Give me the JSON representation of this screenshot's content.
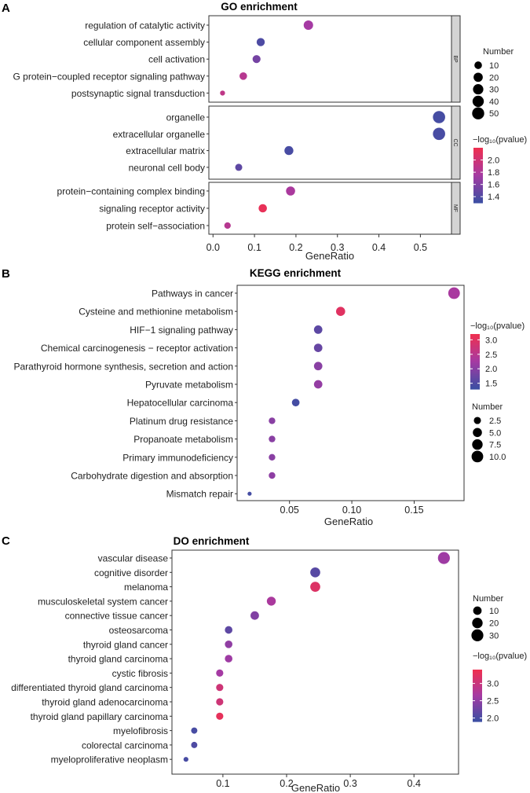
{
  "chart_data": [
    {
      "panel": "A",
      "type": "scatter",
      "title": "GO enrichment",
      "xlabel": "GeneRatio",
      "xlim": [
        -0.01,
        0.575
      ],
      "xticks": [
        0.0,
        0.1,
        0.2,
        0.3,
        0.4,
        0.5
      ],
      "xtick_labels": [
        "0.0",
        "0.1",
        "0.2",
        "0.3",
        "0.4",
        "0.5"
      ],
      "facets": [
        {
          "label": "BP",
          "terms": [
            {
              "term": "regulation of catalytic activity",
              "gene_ratio": 0.23,
              "number": 22,
              "log10p": 1.75
            },
            {
              "term": "cellular component assembly",
              "gene_ratio": 0.115,
              "number": 13,
              "log10p": 1.38
            },
            {
              "term": "cell activation",
              "gene_ratio": 0.105,
              "number": 12,
              "log10p": 1.55
            },
            {
              "term": "G protein−coupled receptor signaling pathway",
              "gene_ratio": 0.073,
              "number": 10,
              "log10p": 1.85
            },
            {
              "term": "postsynaptic signal transduction",
              "gene_ratio": 0.023,
              "number": 4,
              "log10p": 1.9
            }
          ]
        },
        {
          "label": "CC",
          "terms": [
            {
              "term": "organelle",
              "gene_ratio": 0.545,
              "number": 52,
              "log10p": 1.35
            },
            {
              "term": "extracellular organelle",
              "gene_ratio": 0.545,
              "number": 52,
              "log10p": 1.36
            },
            {
              "term": "extracellular matrix",
              "gene_ratio": 0.183,
              "number": 18,
              "log10p": 1.36
            },
            {
              "term": "neuronal cell body",
              "gene_ratio": 0.062,
              "number": 8,
              "log10p": 1.45
            }
          ]
        },
        {
          "label": "MF",
          "terms": [
            {
              "term": "protein−containing complex binding",
              "gene_ratio": 0.187,
              "number": 19,
              "log10p": 1.78
            },
            {
              "term": "signaling receptor activity",
              "gene_ratio": 0.12,
              "number": 14,
              "log10p": 2.15
            },
            {
              "term": "protein self−association",
              "gene_ratio": 0.035,
              "number": 6,
              "log10p": 1.85
            }
          ]
        }
      ],
      "color_legend": {
        "title": "−log₁₀(pvalue)",
        "ticks": [
          2.0,
          1.8,
          1.6,
          1.4
        ],
        "tick_labels": [
          "2.0",
          "1.8",
          "1.6",
          "1.4"
        ],
        "range": [
          1.3,
          2.2
        ]
      },
      "size_legend": {
        "title": "Number",
        "ticks": [
          10,
          20,
          30,
          40,
          50
        ],
        "tick_labels": [
          "10",
          "20",
          "30",
          "40",
          "50"
        ]
      }
    },
    {
      "panel": "B",
      "type": "scatter",
      "title": "KEGG enrichment",
      "xlabel": "GeneRatio",
      "xlim": [
        0.008,
        0.19
      ],
      "xticks": [
        0.05,
        0.1,
        0.15
      ],
      "xtick_labels": [
        "0.05",
        "0.10",
        "0.15"
      ],
      "terms": [
        {
          "term": "Pathways in cancer",
          "gene_ratio": 0.182,
          "number": 10,
          "log10p": 2.3
        },
        {
          "term": "Cysteine and methionine metabolism",
          "gene_ratio": 0.091,
          "number": 5,
          "log10p": 3.0
        },
        {
          "term": "HIF−1 signaling pathway",
          "gene_ratio": 0.073,
          "number": 4,
          "log10p": 1.6
        },
        {
          "term": "Chemical carcinogenesis − receptor activation",
          "gene_ratio": 0.073,
          "number": 4,
          "log10p": 1.7
        },
        {
          "term": "Parathyroid hormone synthesis, secretion and action",
          "gene_ratio": 0.073,
          "number": 4,
          "log10p": 2.0
        },
        {
          "term": "Pyruvate metabolism",
          "gene_ratio": 0.073,
          "number": 4,
          "log10p": 2.1
        },
        {
          "term": "Hepatocellular carcinoma",
          "gene_ratio": 0.055,
          "number": 3,
          "log10p": 1.4
        },
        {
          "term": "Platinum drug resistance",
          "gene_ratio": 0.036,
          "number": 2,
          "log10p": 2.0
        },
        {
          "term": "Propanoate metabolism",
          "gene_ratio": 0.036,
          "number": 2,
          "log10p": 2.0
        },
        {
          "term": "Primary immunodeficiency",
          "gene_ratio": 0.036,
          "number": 2,
          "log10p": 2.0
        },
        {
          "term": "Carbohydrate digestion and absorption",
          "gene_ratio": 0.036,
          "number": 2,
          "log10p": 2.05
        },
        {
          "term": "Mismatch repair",
          "gene_ratio": 0.018,
          "number": 1,
          "log10p": 1.4
        }
      ],
      "color_legend": {
        "title": "−log₁₀(pvalue)",
        "ticks": [
          3.0,
          2.5,
          2.0,
          1.5
        ],
        "tick_labels": [
          "3.0",
          "2.5",
          "2.0",
          "1.5"
        ],
        "range": [
          1.3,
          3.2
        ]
      },
      "size_legend": {
        "title": "Number",
        "ticks": [
          2.5,
          5.0,
          7.5,
          10.0
        ],
        "tick_labels": [
          "2.5",
          "5.0",
          "7.5",
          "10.0"
        ]
      }
    },
    {
      "panel": "C",
      "type": "scatter",
      "title": "DO enrichment",
      "xlabel": "GeneRatio",
      "xlim": [
        0.02,
        0.47
      ],
      "xticks": [
        0.1,
        0.2,
        0.3,
        0.4
      ],
      "xtick_labels": [
        "0.1",
        "0.2",
        "0.3",
        "0.4"
      ],
      "terms": [
        {
          "term": "vascular disease",
          "gene_ratio": 0.447,
          "number": 30,
          "log10p": 2.6
        },
        {
          "term": "cognitive disorder",
          "gene_ratio": 0.245,
          "number": 17,
          "log10p": 2.1
        },
        {
          "term": "melanoma",
          "gene_ratio": 0.245,
          "number": 17,
          "log10p": 3.2
        },
        {
          "term": "musculoskeletal system cancer",
          "gene_ratio": 0.176,
          "number": 12,
          "log10p": 2.7
        },
        {
          "term": "connective tissue cancer",
          "gene_ratio": 0.15,
          "number": 10,
          "log10p": 2.4
        },
        {
          "term": "osteosarcoma",
          "gene_ratio": 0.109,
          "number": 7,
          "log10p": 2.15
        },
        {
          "term": "thyroid gland cancer",
          "gene_ratio": 0.109,
          "number": 7,
          "log10p": 2.5
        },
        {
          "term": "thyroid gland carcinoma",
          "gene_ratio": 0.109,
          "number": 7,
          "log10p": 2.6
        },
        {
          "term": "cystic fibrosis",
          "gene_ratio": 0.095,
          "number": 6,
          "log10p": 2.65
        },
        {
          "term": "differentiated thyroid gland carcinoma",
          "gene_ratio": 0.095,
          "number": 6,
          "log10p": 3.05
        },
        {
          "term": "thyroid gland adenocarcinoma",
          "gene_ratio": 0.095,
          "number": 6,
          "log10p": 3.05
        },
        {
          "term": "thyroid gland papillary carcinoma",
          "gene_ratio": 0.095,
          "number": 6,
          "log10p": 3.3
        },
        {
          "term": "myelofibrosis",
          "gene_ratio": 0.055,
          "number": 4,
          "log10p": 2.0
        },
        {
          "term": "colorectal carcinoma",
          "gene_ratio": 0.055,
          "number": 4,
          "log10p": 2.05
        },
        {
          "term": "myeloproliferative neoplasm",
          "gene_ratio": 0.042,
          "number": 3,
          "log10p": 2.0
        }
      ],
      "color_legend": {
        "title": "−log₁₀(pvalue)",
        "ticks": [
          3.0,
          2.5,
          2.0
        ],
        "tick_labels": [
          "3.0",
          "2.5",
          "2.0"
        ],
        "range": [
          1.9,
          3.4
        ]
      },
      "size_legend": {
        "title": "Number",
        "ticks": [
          10,
          20,
          30
        ],
        "tick_labels": [
          "10",
          "20",
          "30"
        ]
      }
    }
  ],
  "colors": {
    "low": "#3a4fa3",
    "mid": "#a53aa3",
    "high": "#f0304f",
    "strip": "#d4d4d4",
    "axis": "#333333"
  }
}
